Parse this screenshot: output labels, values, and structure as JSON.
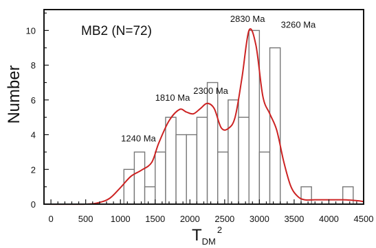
{
  "chart_data": {
    "type": "bar",
    "title": "MB2 (N=72)",
    "xlabel": "T",
    "xlabel_subscript": "DM",
    "xlabel_superscript": "2",
    "ylabel": "Number",
    "xlim": [
      -100,
      4500
    ],
    "ylim": [
      0,
      11.2
    ],
    "x_ticks": [
      0,
      500,
      1000,
      1500,
      2000,
      2500,
      3000,
      3500,
      4000,
      4500
    ],
    "y_ticks": [
      0,
      2,
      4,
      6,
      8,
      10
    ],
    "grid": false,
    "bin_width": 150,
    "bins": [
      {
        "start": 1050,
        "value": 2
      },
      {
        "start": 1200,
        "value": 3
      },
      {
        "start": 1350,
        "value": 1
      },
      {
        "start": 1500,
        "value": 3
      },
      {
        "start": 1650,
        "value": 5
      },
      {
        "start": 1800,
        "value": 4
      },
      {
        "start": 1950,
        "value": 4
      },
      {
        "start": 2100,
        "value": 5
      },
      {
        "start": 2250,
        "value": 7
      },
      {
        "start": 2400,
        "value": 3
      },
      {
        "start": 2550,
        "value": 6
      },
      {
        "start": 2700,
        "value": 5
      },
      {
        "start": 2850,
        "value": 10
      },
      {
        "start": 3000,
        "value": 3
      },
      {
        "start": 3150,
        "value": 9
      },
      {
        "start": 3600,
        "value": 1
      },
      {
        "start": 4200,
        "value": 1
      }
    ],
    "curve": {
      "x": [
        -100,
        500,
        700,
        850,
        1000,
        1150,
        1300,
        1450,
        1550,
        1700,
        1850,
        1950,
        2050,
        2150,
        2250,
        2350,
        2450,
        2550,
        2650,
        2750,
        2850,
        2950,
        3050,
        3150,
        3250,
        3350,
        3450,
        3550,
        3650,
        3800,
        4200,
        4400,
        4500
      ],
      "y": [
        0,
        0,
        0.1,
        0.35,
        0.95,
        1.6,
        1.95,
        2.4,
        3.5,
        4.8,
        5.45,
        5.3,
        5.2,
        5.5,
        5.8,
        5.5,
        4.4,
        4.35,
        5.0,
        7.3,
        10.0,
        9.15,
        6.2,
        5.2,
        4.25,
        2.45,
        1.05,
        0.45,
        0.25,
        0.25,
        0.25,
        0.2,
        0.15
      ],
      "color": "#cc2222"
    },
    "annotations": [
      {
        "text": "1240 Ma",
        "x": 1260,
        "y": 3.6
      },
      {
        "text": "1810 Ma",
        "x": 1750,
        "y": 5.95
      },
      {
        "text": "2300 Ma",
        "x": 2300,
        "y": 6.35
      },
      {
        "text": "2830 Ma",
        "x": 2830,
        "y": 10.5
      },
      {
        "text": "3260 Ma",
        "x": 3560,
        "y": 10.15
      }
    ],
    "colors": {
      "bar_stroke": "#777777",
      "bar_fill": "#ffffff",
      "axis": "#111111",
      "text": "#111111"
    }
  }
}
